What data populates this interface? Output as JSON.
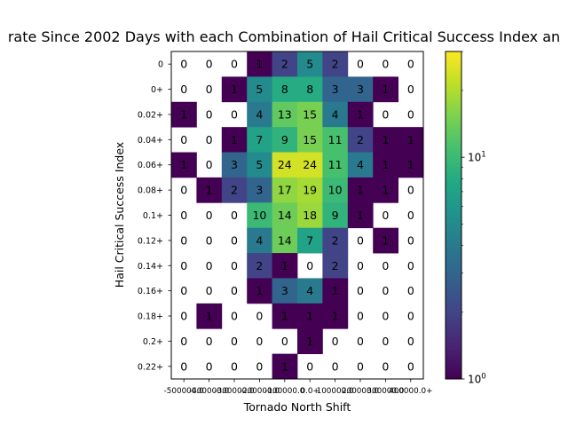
{
  "chart_data": {
    "type": "heatmap",
    "title": "rate Since 2002 Days with each Combination of Hail Critical Success Index an",
    "xlabel": "Tornado North Shift",
    "ylabel": "Hail Critical Success Index",
    "x_tick_labels": [
      "-500000.0",
      "-400000.0",
      "-300000.0",
      "-200000.0",
      "-100000.0",
      "0.0+",
      "100000.0",
      "200000.0",
      "300000.0",
      "400000.0+"
    ],
    "y_categories": [
      "0",
      "0+",
      "0.02+",
      "0.04+",
      "0.06+",
      "0.08+",
      "0.1+",
      "0.12+",
      "0.14+",
      "0.16+",
      "0.18+",
      "0.2+",
      "0.22+"
    ],
    "values": [
      [
        0,
        0,
        0,
        1,
        2,
        5,
        2,
        0,
        0,
        0
      ],
      [
        0,
        0,
        1,
        5,
        8,
        8,
        3,
        3,
        1,
        0
      ],
      [
        1,
        0,
        0,
        4,
        13,
        15,
        4,
        1,
        0,
        0
      ],
      [
        0,
        0,
        1,
        7,
        9,
        15,
        11,
        2,
        1,
        1
      ],
      [
        1,
        0,
        3,
        5,
        24,
        24,
        11,
        4,
        1,
        1
      ],
      [
        0,
        1,
        2,
        3,
        17,
        19,
        10,
        1,
        1,
        0
      ],
      [
        0,
        0,
        0,
        10,
        14,
        18,
        9,
        1,
        0,
        0
      ],
      [
        0,
        0,
        0,
        4,
        14,
        7,
        2,
        0,
        1,
        0
      ],
      [
        0,
        0,
        0,
        2,
        1,
        0,
        2,
        0,
        0,
        0
      ],
      [
        0,
        0,
        0,
        1,
        3,
        4,
        1,
        0,
        0,
        0
      ],
      [
        0,
        1,
        0,
        0,
        1,
        1,
        1,
        0,
        0,
        0
      ],
      [
        0,
        0,
        0,
        0,
        0,
        1,
        0,
        0,
        0,
        0
      ],
      [
        0,
        0,
        0,
        0,
        1,
        0,
        0,
        0,
        0,
        0
      ]
    ],
    "colorbar": {
      "scale": "log",
      "range": [
        1,
        30
      ],
      "colormap": "viridis",
      "tick_labels": [
        "10",
        "1"
      ]
    },
    "zero_cells_color": "#ffffff"
  }
}
